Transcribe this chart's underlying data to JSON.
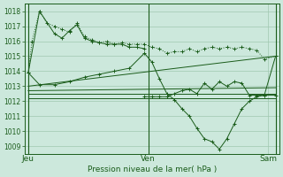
{
  "title": "Pression niveau de la mer( hPa )",
  "background_color": "#cce8dc",
  "grid_color": "#a0c8b0",
  "line_color": "#1a5c1a",
  "ylim": [
    1008.5,
    1018.5
  ],
  "yticks": [
    1009,
    1010,
    1011,
    1012,
    1013,
    1014,
    1015,
    1016,
    1017,
    1018
  ],
  "xtick_labels": [
    "Jeu",
    "Ven",
    "Sam"
  ],
  "xtick_positions": [
    0.5,
    16.5,
    32.5
  ],
  "xlim": [
    0,
    34
  ],
  "vlines": [
    0.5,
    16.5,
    33.5
  ],
  "series_flat1": {
    "x": [
      0.5,
      2,
      4,
      6,
      8,
      10,
      12,
      14,
      16,
      18,
      20,
      22,
      24,
      26,
      28,
      30,
      32,
      33.5
    ],
    "y": [
      1012.5,
      1012.5,
      1012.5,
      1012.5,
      1012.5,
      1012.5,
      1012.5,
      1012.5,
      1012.5,
      1012.5,
      1012.5,
      1012.5,
      1012.5,
      1012.5,
      1012.5,
      1012.5,
      1012.5,
      1012.5
    ],
    "lw": 0.7,
    "ls": "-",
    "marker": null
  },
  "series_flat2": {
    "x": [
      0.5,
      33.5
    ],
    "y": [
      1012.2,
      1012.2
    ],
    "lw": 0.7,
    "ls": "-",
    "marker": null
  },
  "series_rising": {
    "x": [
      0.5,
      33.5
    ],
    "y": [
      1013.0,
      1015.0
    ],
    "lw": 0.7,
    "ls": "-",
    "marker": null
  },
  "series_rising2": {
    "x": [
      0.5,
      33.5
    ],
    "y": [
      1012.7,
      1012.9
    ],
    "lw": 0.7,
    "ls": "-",
    "marker": null
  },
  "series_dotted_peak": {
    "x": [
      0.5,
      1,
      2,
      3,
      4,
      5,
      6,
      7,
      8,
      9,
      10,
      11,
      12,
      13,
      14,
      15,
      16,
      17,
      18,
      19,
      20,
      21,
      22,
      23,
      24,
      25,
      26,
      27,
      28,
      29,
      30,
      31,
      32,
      33.5
    ],
    "y": [
      1013.9,
      1016.0,
      1018.0,
      1017.2,
      1017.0,
      1016.8,
      1016.6,
      1017.2,
      1016.3,
      1016.1,
      1015.9,
      1016.0,
      1015.8,
      1015.9,
      1015.8,
      1015.8,
      1015.8,
      1015.6,
      1015.5,
      1015.2,
      1015.3,
      1015.3,
      1015.5,
      1015.3,
      1015.5,
      1015.6,
      1015.5,
      1015.6,
      1015.5,
      1015.6,
      1015.5,
      1015.4,
      1014.8,
      1015.0
    ],
    "lw": 0.7,
    "ls": "dotted",
    "marker": "+"
  },
  "series_peak_solid": {
    "x": [
      0.5,
      2,
      4,
      5,
      6,
      7,
      8,
      9,
      10,
      11,
      12,
      13,
      14,
      15,
      16
    ],
    "y": [
      1013.9,
      1018.0,
      1016.5,
      1016.2,
      1016.7,
      1017.1,
      1016.2,
      1016.0,
      1015.9,
      1015.8,
      1015.8,
      1015.8,
      1015.6,
      1015.6,
      1015.5
    ],
    "lw": 0.7,
    "ls": "-",
    "marker": "+"
  },
  "series_valley": {
    "x": [
      0.5,
      2,
      4,
      6,
      8,
      10,
      12,
      14,
      16,
      17,
      18,
      19,
      20,
      21,
      22,
      23,
      24,
      25,
      26,
      27,
      28,
      29,
      30,
      31,
      32,
      33.5
    ],
    "y": [
      1013.9,
      1013.1,
      1013.1,
      1013.3,
      1013.6,
      1013.8,
      1014.0,
      1014.2,
      1015.2,
      1014.6,
      1013.5,
      1012.5,
      1012.1,
      1011.5,
      1011.0,
      1010.2,
      1009.5,
      1009.3,
      1008.8,
      1009.5,
      1010.5,
      1011.5,
      1012.0,
      1012.3,
      1012.4,
      1012.4
    ],
    "lw": 0.7,
    "ls": "-",
    "marker": "+"
  },
  "series_right_triangle": {
    "x": [
      16,
      17,
      18,
      19,
      20,
      21,
      22,
      23,
      24,
      25,
      26,
      27,
      28,
      29,
      30,
      31,
      32,
      33.5
    ],
    "y": [
      1012.3,
      1012.3,
      1012.3,
      1012.3,
      1012.5,
      1012.7,
      1012.8,
      1012.5,
      1013.2,
      1012.8,
      1013.3,
      1013.0,
      1013.3,
      1013.2,
      1012.4,
      1012.4,
      1012.4,
      1015.0
    ],
    "lw": 0.7,
    "ls": "-",
    "marker": "+"
  }
}
